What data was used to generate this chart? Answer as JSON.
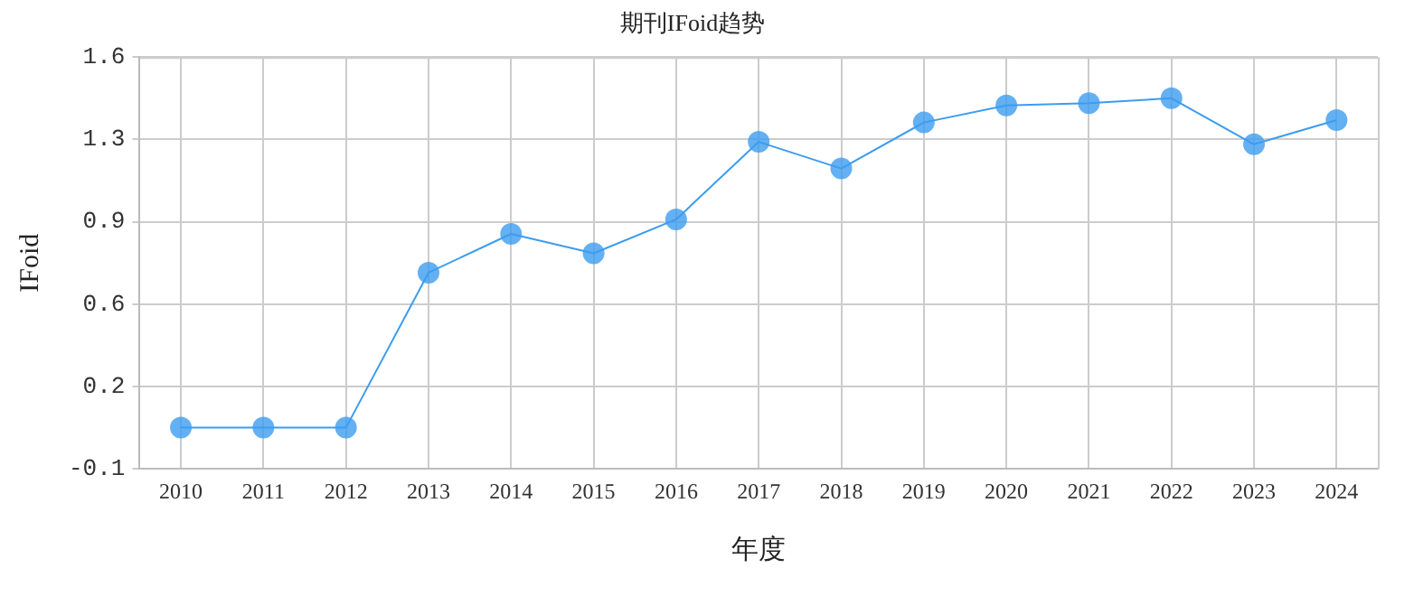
{
  "chart_data": {
    "type": "line",
    "title": "期刊IFoid趋势",
    "xlabel": "年度",
    "ylabel": "IFoid",
    "categories": [
      "2010",
      "2011",
      "2012",
      "2013",
      "2014",
      "2015",
      "2016",
      "2017",
      "2018",
      "2019",
      "2020",
      "2021",
      "2022",
      "2023",
      "2024"
    ],
    "series": [
      {
        "color": "#3c9cf0",
        "values": [
          0.07,
          0.07,
          0.07,
          0.71,
          0.87,
          0.79,
          0.93,
          1.25,
          1.14,
          1.33,
          1.4,
          1.41,
          1.43,
          1.24,
          1.34
        ]
      }
    ],
    "ylim": [
      -0.1,
      1.6
    ],
    "yticks": [
      {
        "value": -0.1,
        "label": "-0.1"
      },
      {
        "value": 0.24,
        "label": "0.2"
      },
      {
        "value": 0.58,
        "label": "0.6"
      },
      {
        "value": 0.92,
        "label": "0.9"
      },
      {
        "value": 1.26,
        "label": "1.3"
      },
      {
        "value": 1.6,
        "label": "1.6"
      }
    ],
    "grid": true,
    "marker": "circle",
    "line_style": "solid",
    "legend": false
  }
}
